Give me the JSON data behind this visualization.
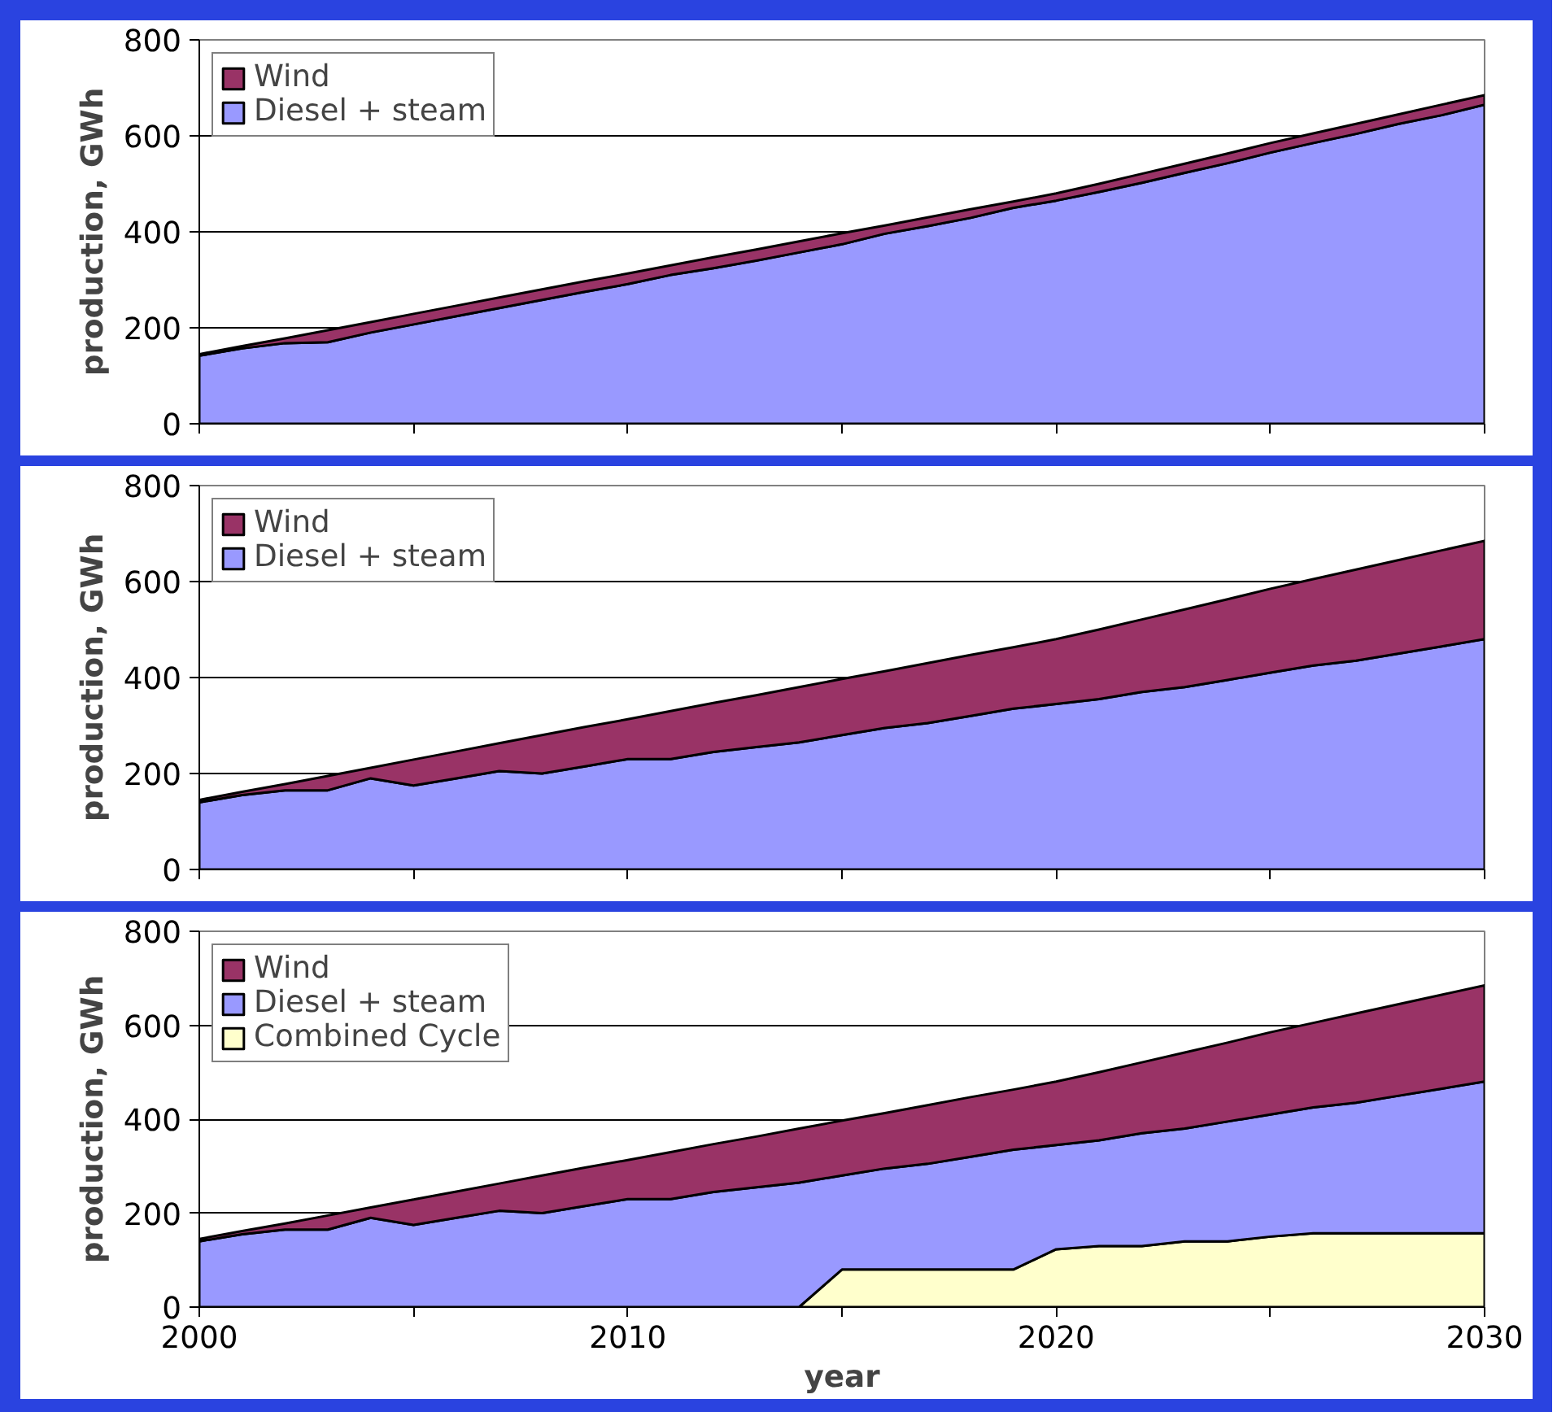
{
  "chart_data": [
    {
      "type": "area",
      "stacked": true,
      "ylabel": "production, GWh",
      "x": [
        2000,
        2001,
        2002,
        2003,
        2004,
        2005,
        2006,
        2007,
        2008,
        2009,
        2010,
        2011,
        2012,
        2013,
        2014,
        2015,
        2016,
        2017,
        2018,
        2019,
        2020,
        2021,
        2022,
        2023,
        2024,
        2025,
        2026,
        2027,
        2028,
        2029,
        2030
      ],
      "xlim": [
        2000,
        2030
      ],
      "xticks": [
        {
          "value": 2000,
          "label": null
        },
        {
          "value": 2005,
          "label": null
        },
        {
          "value": 2010,
          "label": null
        },
        {
          "value": 2015,
          "label": null
        },
        {
          "value": 2020,
          "label": null
        },
        {
          "value": 2025,
          "label": null
        },
        {
          "value": 2030,
          "label": null
        }
      ],
      "ylim": [
        0,
        800
      ],
      "yticks": [
        0,
        200,
        400,
        600,
        800
      ],
      "grid": "y",
      "legend": "top left",
      "tick_labels": "y",
      "series": [
        {
          "name": "Diesel + steam",
          "color": "#9999ff",
          "values": [
            142,
            157,
            168,
            170,
            190,
            207,
            224,
            241,
            258,
            275,
            291,
            310,
            324,
            340,
            357,
            374,
            396,
            412,
            429,
            450,
            465,
            483,
            502,
            523,
            543,
            565,
            585,
            604,
            625,
            643,
            665
          ]
        },
        {
          "name": "Wind",
          "color": "#993366",
          "values": [
            3,
            5,
            10,
            25,
            22,
            22,
            22,
            22,
            22,
            22,
            22,
            20,
            23,
            23,
            23,
            23,
            17,
            18,
            18,
            13,
            15,
            17,
            19,
            19,
            20,
            20,
            20,
            21,
            20,
            22,
            20
          ]
        }
      ]
    },
    {
      "type": "area",
      "stacked": true,
      "ylabel": "production, GWh",
      "x": [
        2000,
        2001,
        2002,
        2003,
        2004,
        2005,
        2006,
        2007,
        2008,
        2009,
        2010,
        2011,
        2012,
        2013,
        2014,
        2015,
        2016,
        2017,
        2018,
        2019,
        2020,
        2021,
        2022,
        2023,
        2024,
        2025,
        2026,
        2027,
        2028,
        2029,
        2030
      ],
      "xlim": [
        2000,
        2030
      ],
      "xticks": [
        {
          "value": 2000,
          "label": null
        },
        {
          "value": 2005,
          "label": null
        },
        {
          "value": 2010,
          "label": null
        },
        {
          "value": 2015,
          "label": null
        },
        {
          "value": 2020,
          "label": null
        },
        {
          "value": 2025,
          "label": null
        },
        {
          "value": 2030,
          "label": null
        }
      ],
      "ylim": [
        0,
        800
      ],
      "yticks": [
        0,
        200,
        400,
        600,
        800
      ],
      "grid": "y",
      "legend": "top left",
      "tick_labels": "y",
      "series": [
        {
          "name": "Diesel + steam",
          "color": "#9999ff",
          "values": [
            140,
            155,
            165,
            165,
            190,
            175,
            190,
            205,
            200,
            215,
            230,
            230,
            245,
            255,
            265,
            280,
            295,
            305,
            320,
            335,
            345,
            355,
            370,
            380,
            395,
            410,
            425,
            435,
            450,
            465,
            480
          ]
        },
        {
          "name": "Wind",
          "color": "#993366",
          "values": [
            5,
            7,
            13,
            30,
            22,
            54,
            56,
            58,
            80,
            82,
            83,
            100,
            102,
            108,
            115,
            117,
            118,
            125,
            127,
            128,
            135,
            145,
            151,
            162,
            168,
            175,
            180,
            190,
            195,
            200,
            205
          ]
        }
      ]
    },
    {
      "type": "area",
      "stacked": true,
      "ylabel": "production, GWh",
      "xlabel": "year",
      "x": [
        2000,
        2001,
        2002,
        2003,
        2004,
        2005,
        2006,
        2007,
        2008,
        2009,
        2010,
        2011,
        2012,
        2013,
        2014,
        2015,
        2016,
        2017,
        2018,
        2019,
        2020,
        2021,
        2022,
        2023,
        2024,
        2025,
        2026,
        2027,
        2028,
        2029,
        2030
      ],
      "xlim": [
        2000,
        2030
      ],
      "xticks": [
        2000,
        {
          "value": 2005,
          "label": null
        },
        2010,
        {
          "value": 2015,
          "label": null
        },
        2020,
        {
          "value": 2025,
          "label": null
        },
        2030
      ],
      "ylim": [
        0,
        800
      ],
      "yticks": [
        0,
        200,
        400,
        600,
        800
      ],
      "grid": "y",
      "legend": "top left",
      "series": [
        {
          "name": "Combined Cycle",
          "color": "#ffffcc",
          "values": [
            0,
            0,
            0,
            0,
            0,
            0,
            0,
            0,
            0,
            0,
            0,
            0,
            0,
            0,
            0,
            80,
            80,
            80,
            80,
            80,
            123,
            130,
            130,
            140,
            140,
            150,
            157,
            157,
            157,
            157,
            157
          ]
        },
        {
          "name": "Diesel + steam",
          "color": "#9999ff",
          "values": [
            140,
            155,
            165,
            165,
            190,
            175,
            190,
            205,
            200,
            215,
            230,
            230,
            245,
            255,
            265,
            200,
            215,
            225,
            240,
            255,
            222,
            225,
            240,
            240,
            255,
            260,
            268,
            278,
            293,
            308,
            323
          ]
        },
        {
          "name": "Wind",
          "color": "#993366",
          "values": [
            5,
            7,
            13,
            30,
            22,
            54,
            56,
            58,
            80,
            82,
            83,
            100,
            102,
            108,
            115,
            117,
            118,
            125,
            127,
            128,
            135,
            145,
            151,
            162,
            168,
            175,
            180,
            190,
            195,
            200,
            205
          ]
        }
      ]
    }
  ]
}
